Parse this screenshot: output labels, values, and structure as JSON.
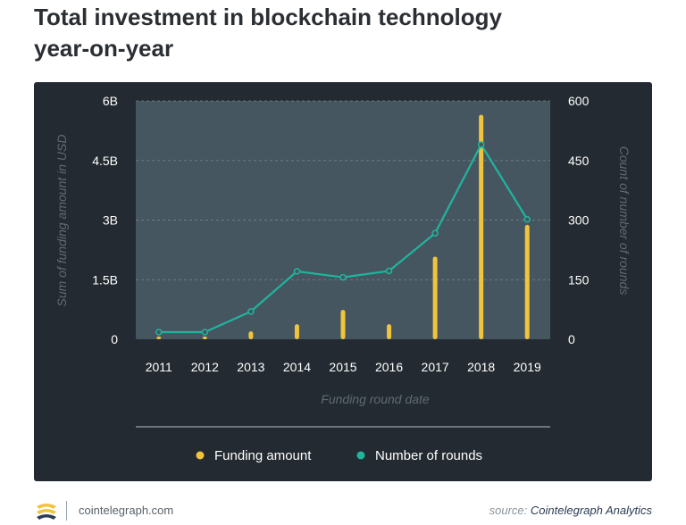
{
  "page": {
    "title_line1": "Total investment in blockchain technology",
    "title_line2": "year-on-year",
    "footer_domain": "cointelegraph.com",
    "footer_source_prefix": "source:",
    "footer_source_name": "Cointelegraph Analytics"
  },
  "colors": {
    "panel_bg": "#232a31",
    "plot_bg": "#465661",
    "funding": "#f0c43c",
    "rounds": "#1fb59d",
    "tick_text": "#ffffff",
    "axis_title": "#5f6b74"
  },
  "chart_data": {
    "type": "bar",
    "categories": [
      "2011",
      "2012",
      "2013",
      "2014",
      "2015",
      "2016",
      "2017",
      "2018",
      "2019"
    ],
    "series": [
      {
        "name": "Funding amount",
        "type": "bar",
        "axis": "left",
        "values": [
          0.07,
          0.07,
          0.2,
          0.38,
          0.74,
          0.38,
          2.08,
          5.65,
          2.88
        ]
      },
      {
        "name": "Number of rounds",
        "type": "line",
        "axis": "right",
        "values": [
          18,
          18,
          70,
          171,
          156,
          172,
          267,
          490,
          302
        ]
      }
    ],
    "xlabel": "Funding round date",
    "ylabel_left": "Sum of funding amount in USD",
    "ylabel_right": "Count of number of rounds",
    "ylim_left": [
      0,
      6
    ],
    "ylim_right": [
      0,
      600
    ],
    "yticks_left": [
      "0",
      "1.5B",
      "3B",
      "4.5B",
      "6B"
    ],
    "yticks_right": [
      "0",
      "150",
      "300",
      "450",
      "600"
    ],
    "grid": true,
    "legend_position": "bottom-center"
  }
}
